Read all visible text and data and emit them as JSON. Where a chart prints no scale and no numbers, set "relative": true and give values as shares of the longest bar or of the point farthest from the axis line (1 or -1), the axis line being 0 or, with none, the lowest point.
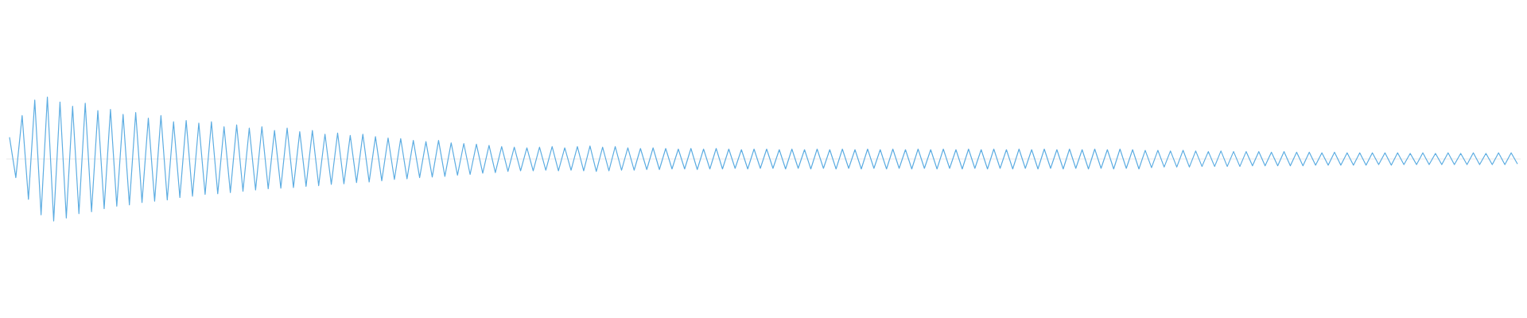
{
  "chart_data": {
    "type": "line",
    "relative": true,
    "categories": [
      null,
      null,
      null,
      null,
      null,
      null,
      null,
      null,
      null,
      null,
      null,
      null,
      null,
      null,
      null,
      null,
      null,
      null,
      null,
      null,
      null,
      null,
      null,
      null,
      null,
      null,
      null,
      null,
      null,
      null,
      null,
      null,
      null,
      null,
      null,
      null,
      null,
      null,
      null,
      null,
      null,
      null,
      null,
      null,
      null,
      null,
      null,
      null,
      null,
      null,
      null,
      null,
      null,
      null,
      null,
      null,
      null,
      null,
      null,
      null,
      null,
      null,
      null,
      null,
      null,
      null,
      null,
      null,
      null,
      null,
      null,
      null,
      null,
      null,
      null,
      null,
      null,
      null,
      null,
      null,
      null,
      null,
      null,
      null,
      null,
      null,
      null,
      null,
      null,
      null,
      null,
      null,
      null,
      null,
      null,
      null,
      null,
      null,
      null,
      null,
      null,
      null,
      null,
      null,
      null,
      null,
      null,
      null,
      null,
      null,
      null,
      null,
      null,
      null,
      null,
      null,
      null,
      null,
      null,
      null,
      null,
      null,
      null,
      null,
      null,
      null,
      null,
      null,
      null,
      null,
      null,
      null,
      null,
      null,
      null,
      null,
      null,
      null,
      null,
      null,
      null,
      null,
      null,
      null,
      null,
      null,
      null,
      null,
      null,
      null,
      null,
      null,
      null,
      null,
      null,
      null,
      null,
      null,
      null,
      null,
      null,
      null,
      null,
      null,
      null,
      null,
      null,
      null,
      null,
      null,
      null,
      null,
      null,
      null,
      null,
      null,
      null,
      null,
      null,
      null,
      null,
      null,
      null,
      null,
      null,
      null,
      null,
      null,
      null,
      null,
      null,
      null,
      null,
      null,
      null,
      null,
      null,
      null,
      null,
      null,
      null,
      null,
      null,
      null,
      null,
      null,
      null,
      null,
      null,
      null,
      null,
      null,
      null,
      null,
      null,
      null,
      null,
      null,
      null,
      null,
      null,
      null,
      null,
      null,
      null,
      null,
      null,
      null,
      null,
      null,
      null,
      null,
      null,
      null,
      null,
      null,
      null,
      null,
      null,
      null
    ],
    "series": [
      {
        "color": "#5dade2",
        "values": [
          0.35,
          -0.3,
          0.7,
          -0.65,
          0.95,
          -0.9,
          1,
          -1,
          0.92,
          -0.95,
          0.85,
          -0.88,
          0.9,
          -0.85,
          0.78,
          -0.8,
          0.8,
          -0.76,
          0.72,
          -0.74,
          0.75,
          -0.7,
          0.66,
          -0.68,
          0.7,
          -0.66,
          0.6,
          -0.62,
          0.62,
          -0.6,
          0.58,
          -0.57,
          0.6,
          -0.56,
          0.52,
          -0.54,
          0.55,
          -0.52,
          0.5,
          -0.5,
          0.52,
          -0.48,
          0.46,
          -0.47,
          0.5,
          -0.46,
          0.44,
          -0.44,
          0.46,
          -0.43,
          0.4,
          -0.41,
          0.42,
          -0.4,
          0.38,
          -0.38,
          0.4,
          -0.37,
          0.36,
          -0.35,
          0.34,
          -0.33,
          0.33,
          -0.32,
          0.3,
          -0.3,
          0.28,
          -0.29,
          0.3,
          -0.28,
          0.26,
          -0.26,
          0.25,
          -0.25,
          0.24,
          -0.23,
          0.22,
          -0.22,
          0.2,
          -0.2,
          0.19,
          -0.19,
          0.18,
          -0.19,
          0.19,
          -0.18,
          0.2,
          -0.19,
          0.18,
          -0.18,
          0.2,
          -0.19,
          0.21,
          -0.2,
          0.19,
          -0.19,
          0.2,
          -0.18,
          0.18,
          -0.18,
          0.17,
          -0.17,
          0.18,
          -0.17,
          0.17,
          -0.16,
          0.16,
          -0.16,
          0.17,
          -0.17,
          0.16,
          -0.16,
          0.17,
          -0.16,
          0.16,
          -0.15,
          0.15,
          -0.16,
          0.16,
          -0.15,
          0.16,
          -0.15,
          0.15,
          -0.16,
          0.16,
          -0.15,
          0.15,
          -0.16,
          0.16,
          -0.15,
          0.15,
          -0.16,
          0.16,
          -0.15,
          0.15,
          -0.16,
          0.16,
          -0.15,
          0.15,
          -0.16,
          0.16,
          -0.15,
          0.15,
          -0.16,
          0.16,
          -0.15,
          0.15,
          -0.16,
          0.16,
          -0.15,
          0.15,
          -0.16,
          0.16,
          -0.15,
          0.15,
          -0.16,
          0.16,
          -0.15,
          0.15,
          -0.16,
          0.16,
          -0.15,
          0.15,
          -0.16,
          0.16,
          -0.15,
          0.15,
          -0.16,
          0.16,
          -0.15,
          0.15,
          -0.16,
          0.16,
          -0.15,
          0.15,
          -0.16,
          0.16,
          -0.15,
          0.15,
          -0.16,
          0.14,
          -0.14,
          0.14,
          -0.13,
          0.13,
          -0.13,
          0.14,
          -0.13,
          0.13,
          -0.12,
          0.12,
          -0.12,
          0.13,
          -0.12,
          0.12,
          -0.12,
          0.12,
          -0.11,
          0.12,
          -0.11,
          0.11,
          -0.11,
          0.12,
          -0.11,
          0.11,
          -0.11,
          0.11,
          -0.1,
          0.1,
          -0.1,
          0.11,
          -0.1,
          0.1,
          -0.1,
          0.1,
          -0.1,
          0.1,
          -0.09,
          0.1,
          -0.1,
          0.1,
          -0.09,
          0.09,
          -0.09,
          0.1,
          -0.09,
          0.09,
          -0.09,
          0.1,
          -0.09,
          0.09,
          -0.09,
          0.1,
          -0.09,
          0.09,
          -0.09,
          0.1,
          -0.09,
          0.1,
          -0.08
        ]
      }
    ]
  }
}
